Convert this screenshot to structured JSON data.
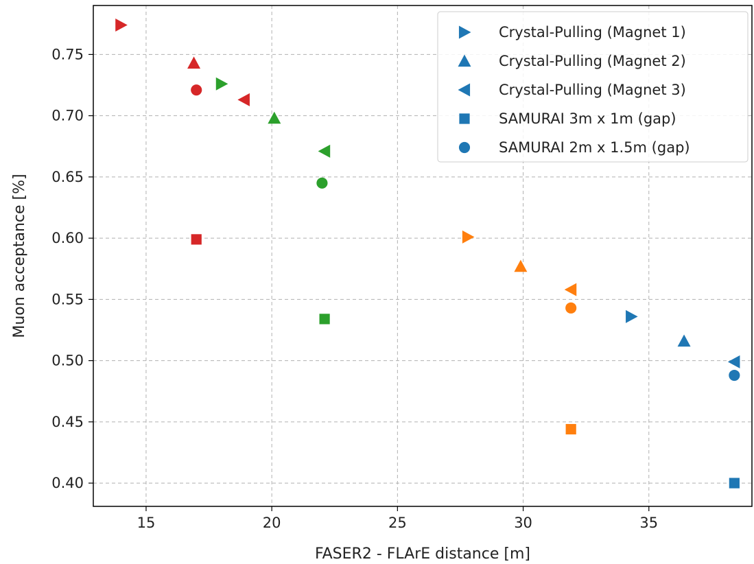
{
  "chart_data": {
    "type": "scatter",
    "xlabel": "FASER2 - FLArE distance [m]",
    "ylabel": "Muon acceptance [%]",
    "xlim": [
      12.9,
      39.1
    ],
    "ylim": [
      0.381,
      0.79
    ],
    "xticks": [
      15,
      20,
      25,
      30,
      35
    ],
    "yticks": [
      0.4,
      0.45,
      0.5,
      0.55,
      0.6,
      0.65,
      0.7,
      0.75
    ],
    "ytick_labels": [
      "0.40",
      "0.45",
      "0.50",
      "0.55",
      "0.60",
      "0.65",
      "0.70",
      "0.75"
    ],
    "grid": true,
    "legend_position": "top-right",
    "legend": [
      {
        "label": "Crystal-Pulling (Magnet 1)",
        "marker": "triangle-right"
      },
      {
        "label": "Crystal-Pulling (Magnet 2)",
        "marker": "triangle-up"
      },
      {
        "label": "Crystal-Pulling (Magnet 3)",
        "marker": "triangle-left"
      },
      {
        "label": "SAMURAI 3m x 1m (gap)",
        "marker": "square"
      },
      {
        "label": "SAMURAI 2m x 1.5m (gap)",
        "marker": "circle"
      }
    ],
    "colors": {
      "blue": "#1f77b4",
      "orange": "#ff7f0e",
      "green": "#2ca02c",
      "red": "#d62728"
    },
    "points": [
      {
        "x": 34.3,
        "y": 0.536,
        "marker": "triangle-right",
        "color": "blue"
      },
      {
        "x": 36.4,
        "y": 0.516,
        "marker": "triangle-up",
        "color": "blue"
      },
      {
        "x": 38.4,
        "y": 0.499,
        "marker": "triangle-left",
        "color": "blue"
      },
      {
        "x": 38.4,
        "y": 0.4,
        "marker": "square",
        "color": "blue"
      },
      {
        "x": 38.4,
        "y": 0.488,
        "marker": "circle",
        "color": "blue"
      },
      {
        "x": 27.8,
        "y": 0.601,
        "marker": "triangle-right",
        "color": "orange"
      },
      {
        "x": 29.9,
        "y": 0.577,
        "marker": "triangle-up",
        "color": "orange"
      },
      {
        "x": 31.9,
        "y": 0.558,
        "marker": "triangle-left",
        "color": "orange"
      },
      {
        "x": 31.9,
        "y": 0.444,
        "marker": "square",
        "color": "orange"
      },
      {
        "x": 31.9,
        "y": 0.543,
        "marker": "circle",
        "color": "orange"
      },
      {
        "x": 18.0,
        "y": 0.726,
        "marker": "triangle-right",
        "color": "green"
      },
      {
        "x": 20.1,
        "y": 0.698,
        "marker": "triangle-up",
        "color": "green"
      },
      {
        "x": 22.1,
        "y": 0.671,
        "marker": "triangle-left",
        "color": "green"
      },
      {
        "x": 22.1,
        "y": 0.534,
        "marker": "square",
        "color": "green"
      },
      {
        "x": 22.0,
        "y": 0.645,
        "marker": "circle",
        "color": "green"
      },
      {
        "x": 14.0,
        "y": 0.774,
        "marker": "triangle-right",
        "color": "red"
      },
      {
        "x": 16.9,
        "y": 0.743,
        "marker": "triangle-up",
        "color": "red"
      },
      {
        "x": 18.9,
        "y": 0.713,
        "marker": "triangle-left",
        "color": "red"
      },
      {
        "x": 17.0,
        "y": 0.599,
        "marker": "square",
        "color": "red"
      },
      {
        "x": 17.0,
        "y": 0.721,
        "marker": "circle",
        "color": "red"
      }
    ]
  }
}
